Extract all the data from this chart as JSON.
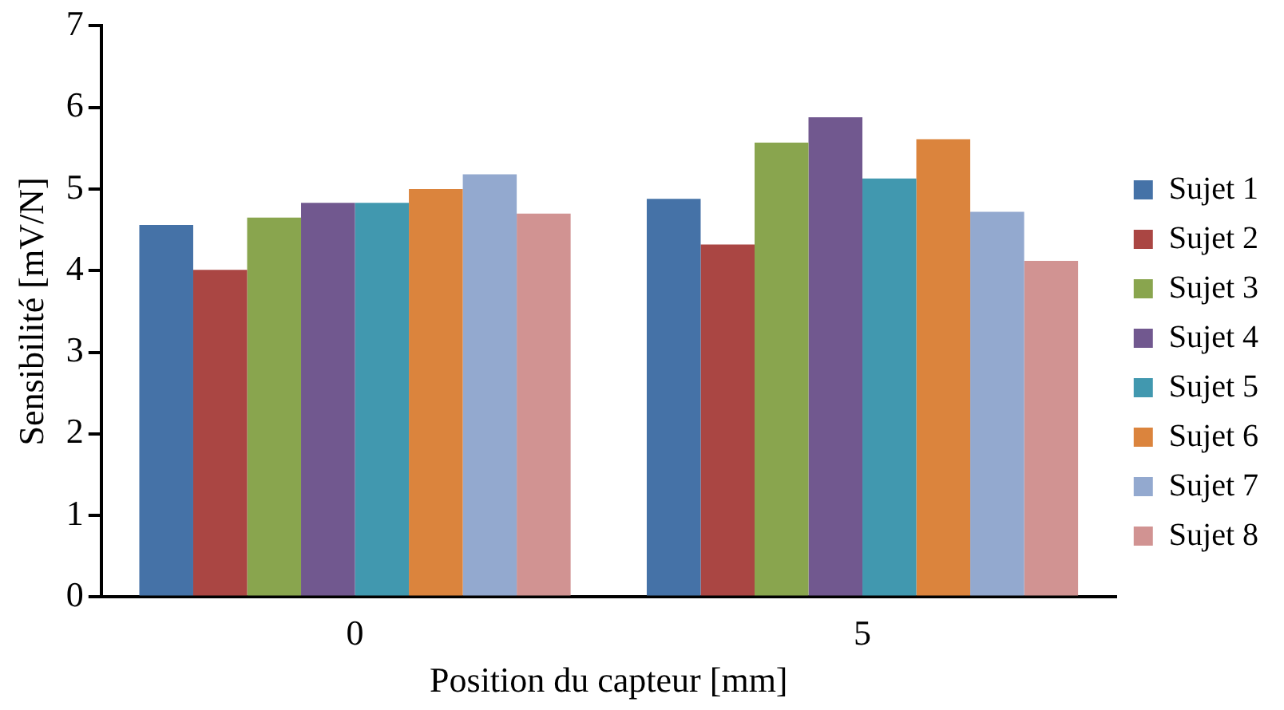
{
  "chart_data": {
    "type": "bar",
    "xlabel": "Position du capteur [mm]",
    "ylabel": "Sensibilité [mV/N]",
    "categories": [
      "0",
      "5"
    ],
    "series": [
      {
        "name": "Sujet 1",
        "color": "#4572a7",
        "values": [
          4.56,
          4.88
        ]
      },
      {
        "name": "Sujet 2",
        "color": "#aa4643",
        "values": [
          4.01,
          4.32
        ]
      },
      {
        "name": "Sujet 3",
        "color": "#89a54e",
        "values": [
          4.65,
          5.57
        ]
      },
      {
        "name": "Sujet 4",
        "color": "#71588f",
        "values": [
          4.83,
          5.88
        ]
      },
      {
        "name": "Sujet 5",
        "color": "#4198af",
        "values": [
          4.83,
          5.13
        ]
      },
      {
        "name": "Sujet 6",
        "color": "#db843d",
        "values": [
          5.0,
          5.61
        ]
      },
      {
        "name": "Sujet 7",
        "color": "#93a9cf",
        "values": [
          5.18,
          4.72
        ]
      },
      {
        "name": "Sujet 8",
        "color": "#d19392",
        "values": [
          4.7,
          4.12
        ]
      }
    ],
    "ylim": [
      0,
      7
    ],
    "yticks": [
      0,
      1,
      2,
      3,
      4,
      5,
      6,
      7
    ],
    "grid": false,
    "legend": "right"
  }
}
